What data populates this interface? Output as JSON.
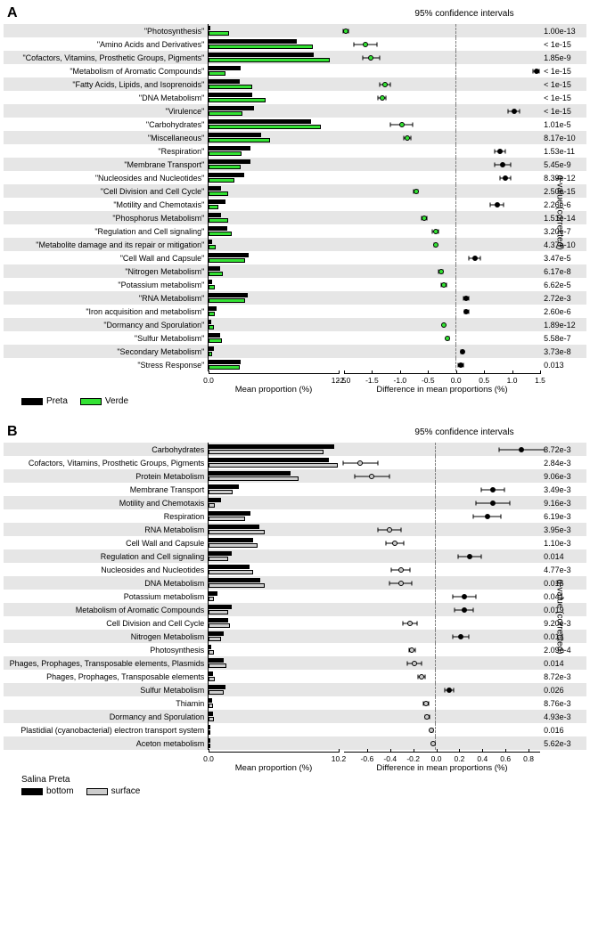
{
  "panelA": {
    "label": "A",
    "header": "95% confidence intervals",
    "bars_axis": {
      "min": 0,
      "max": 12.5,
      "ticks": [
        0.0,
        12.5
      ],
      "title": "Mean proportion (%)"
    },
    "diff_axis": {
      "min": -2.0,
      "max": 1.5,
      "ticks": [
        -2.0,
        -1.5,
        -1.0,
        -0.5,
        0.0,
        0.5,
        1.0,
        1.5
      ],
      "title": "Difference in mean proportions (%)"
    },
    "y_axis_right": "q-value (corrected)",
    "series": [
      {
        "name": "Preta",
        "color": "#000000"
      },
      {
        "name": "Verde",
        "color": "#33e233"
      }
    ],
    "rows": [
      {
        "cat": "\"Photosynthesis\"",
        "v": [
          0.05,
          2.0
        ],
        "d": -1.95,
        "ci": [
          0.05,
          0.05
        ],
        "col": "#33e233",
        "q": "1.00e-13"
      },
      {
        "cat": "\"Amino Acids and Derivatives\"",
        "v": [
          8.5,
          10.1
        ],
        "d": -1.6,
        "ci": [
          0.2,
          0.2
        ],
        "col": "#33e233",
        "q": "< 1e-15"
      },
      {
        "cat": "\"Cofactors, Vitamins, Prosthetic Groups, Pigments\"",
        "v": [
          10.2,
          11.7
        ],
        "d": -1.5,
        "ci": [
          0.15,
          0.15
        ],
        "col": "#33e233",
        "q": "1.85e-9"
      },
      {
        "cat": "\"Metabolism of Aromatic Compounds\"",
        "v": [
          3.1,
          1.6
        ],
        "d": 1.45,
        "ci": [
          0.06,
          0.06
        ],
        "col": "#000000",
        "q": "< 1e-15"
      },
      {
        "cat": "\"Fatty Acids, Lipids, and Isoprenoids\"",
        "v": [
          3.0,
          4.2
        ],
        "d": -1.25,
        "ci": [
          0.1,
          0.1
        ],
        "col": "#33e233",
        "q": "< 1e-15"
      },
      {
        "cat": "\"DNA Metabolism\"",
        "v": [
          4.2,
          5.5
        ],
        "d": -1.3,
        "ci": [
          0.07,
          0.07
        ],
        "col": "#33e233",
        "q": "< 1e-15"
      },
      {
        "cat": "\"Virulence\"",
        "v": [
          4.4,
          3.3
        ],
        "d": 1.05,
        "ci": [
          0.1,
          0.1
        ],
        "col": "#000000",
        "q": "< 1e-15"
      },
      {
        "cat": "\"Carbohydrates\"",
        "v": [
          9.9,
          10.9
        ],
        "d": -0.95,
        "ci": [
          0.2,
          0.2
        ],
        "col": "#33e233",
        "q": "1.01e-5"
      },
      {
        "cat": "\"Miscellaneous\"",
        "v": [
          5.1,
          5.9
        ],
        "d": -0.85,
        "ci": [
          0.06,
          0.06
        ],
        "col": "#33e233",
        "q": "8.17e-10"
      },
      {
        "cat": "\"Respiration\"",
        "v": [
          4.0,
          3.2
        ],
        "d": 0.8,
        "ci": [
          0.1,
          0.1
        ],
        "col": "#000000",
        "q": "1.53e-11"
      },
      {
        "cat": "\"Membrane Transport\"",
        "v": [
          4.0,
          3.1
        ],
        "d": 0.85,
        "ci": [
          0.15,
          0.15
        ],
        "col": "#000000",
        "q": "5.45e-9"
      },
      {
        "cat": "\"Nucleosides and Nucleotides\"",
        "v": [
          3.4,
          2.5
        ],
        "d": 0.9,
        "ci": [
          0.1,
          0.1
        ],
        "col": "#000000",
        "q": "8.39e-12"
      },
      {
        "cat": "\"Cell Division and Cell Cycle\"",
        "v": [
          1.2,
          1.9
        ],
        "d": -0.7,
        "ci": [
          0.04,
          0.04
        ],
        "col": "#33e233",
        "q": "2.50e-15"
      },
      {
        "cat": "\"Motility and Chemotaxis\"",
        "v": [
          1.65,
          0.9
        ],
        "d": 0.75,
        "ci": [
          0.12,
          0.12
        ],
        "col": "#000000",
        "q": "2.26e-6"
      },
      {
        "cat": "\"Phosphorus Metabolism\"",
        "v": [
          1.2,
          1.85
        ],
        "d": -0.55,
        "ci": [
          0.04,
          0.04
        ],
        "col": "#33e233",
        "q": "1.51e-14"
      },
      {
        "cat": "\"Regulation and Cell signaling\"",
        "v": [
          1.8,
          2.2
        ],
        "d": -0.35,
        "ci": [
          0.05,
          0.05
        ],
        "col": "#33e233",
        "q": "3.20e-7"
      },
      {
        "cat": "\"Metabolite damage and its repair or mitigation\"",
        "v": [
          0.3,
          0.65
        ],
        "d": -0.35,
        "ci": [
          0.03,
          0.03
        ],
        "col": "#33e233",
        "q": "4.37e-10"
      },
      {
        "cat": "\"Cell Wall and Capsule\"",
        "v": [
          3.9,
          3.5
        ],
        "d": 0.35,
        "ci": [
          0.1,
          0.1
        ],
        "col": "#000000",
        "q": "3.47e-5"
      },
      {
        "cat": "\"Nitrogen Metabolism\"",
        "v": [
          1.1,
          1.35
        ],
        "d": -0.25,
        "ci": [
          0.04,
          0.04
        ],
        "col": "#33e233",
        "q": "6.17e-8"
      },
      {
        "cat": "\"Potassium metabolism\"",
        "v": [
          0.35,
          0.55
        ],
        "d": -0.2,
        "ci": [
          0.04,
          0.04
        ],
        "col": "#33e233",
        "q": "6.62e-5"
      },
      {
        "cat": "\"RNA Metabolism\"",
        "v": [
          3.8,
          3.5
        ],
        "d": 0.2,
        "ci": [
          0.05,
          0.05
        ],
        "col": "#000000",
        "q": "2.72e-3"
      },
      {
        "cat": "\"Iron acquisition and metabolism\"",
        "v": [
          0.75,
          0.55
        ],
        "d": 0.2,
        "ci": [
          0.04,
          0.04
        ],
        "col": "#000000",
        "q": "2.60e-6"
      },
      {
        "cat": "\"Dormancy and Sporulation\"",
        "v": [
          0.25,
          0.45
        ],
        "d": -0.2,
        "ci": [
          0.02,
          0.02
        ],
        "col": "#33e233",
        "q": "1.89e-12"
      },
      {
        "cat": "\"Sulfur Metabolism\"",
        "v": [
          1.1,
          1.25
        ],
        "d": -0.13,
        "ci": [
          0.02,
          0.02
        ],
        "col": "#33e233",
        "q": "5.58e-7"
      },
      {
        "cat": "\"Secondary Metabolism\"",
        "v": [
          0.45,
          0.3
        ],
        "d": 0.13,
        "ci": [
          0.02,
          0.02
        ],
        "col": "#000000",
        "q": "3.73e-8"
      },
      {
        "cat": "\"Stress Response\"",
        "v": [
          3.1,
          3.0
        ],
        "d": 0.1,
        "ci": [
          0.05,
          0.05
        ],
        "col": "#000000",
        "q": "0.013"
      }
    ]
  },
  "panelB": {
    "label": "B",
    "header": "95% confidence intervals",
    "bars_axis": {
      "min": 0,
      "max": 10.2,
      "ticks": [
        0.0,
        10.2
      ],
      "title": "Mean proportion (%)"
    },
    "diff_axis": {
      "min": -0.8,
      "max": 0.9,
      "ticks": [
        -0.6,
        -0.4,
        -0.2,
        0.0,
        0.2,
        0.4,
        0.6,
        0.8
      ],
      "title": "Difference in mean proportions (%)"
    },
    "y_axis_right": "q-value (corrected)",
    "legend_title": "Salina Preta",
    "series": [
      {
        "name": "bottom",
        "color": "#000000"
      },
      {
        "name": "surface",
        "color": "#cccccc"
      }
    ],
    "rows": [
      {
        "cat": "Carbohydrates",
        "v": [
          9.9,
          9.1
        ],
        "d": 0.75,
        "ci": [
          0.2,
          0.2
        ],
        "col": "#000000",
        "q": "3.72e-3"
      },
      {
        "cat": "Cofactors, Vitamins, Prosthetic Groups, Pigments",
        "v": [
          9.5,
          10.2
        ],
        "d": -0.65,
        "ci": [
          0.15,
          0.15
        ],
        "col": "#cccccc",
        "q": "2.84e-3"
      },
      {
        "cat": "Protein Metabolism",
        "v": [
          6.5,
          7.1
        ],
        "d": -0.55,
        "ci": [
          0.15,
          0.15
        ],
        "col": "#cccccc",
        "q": "9.06e-3"
      },
      {
        "cat": "Membrane Transport",
        "v": [
          2.4,
          1.9
        ],
        "d": 0.5,
        "ci": [
          0.1,
          0.1
        ],
        "col": "#000000",
        "q": "3.49e-3"
      },
      {
        "cat": "Motility and Chemotaxis",
        "v": [
          1.0,
          0.5
        ],
        "d": 0.5,
        "ci": [
          0.15,
          0.15
        ],
        "col": "#000000",
        "q": "9.16e-3"
      },
      {
        "cat": "Respiration",
        "v": [
          3.3,
          2.9
        ],
        "d": 0.45,
        "ci": [
          0.12,
          0.12
        ],
        "col": "#000000",
        "q": "6.19e-3"
      },
      {
        "cat": "RNA Metabolism",
        "v": [
          4.0,
          4.4
        ],
        "d": -0.4,
        "ci": [
          0.1,
          0.1
        ],
        "col": "#cccccc",
        "q": "3.95e-3"
      },
      {
        "cat": "Cell Wall and Capsule",
        "v": [
          3.5,
          3.85
        ],
        "d": -0.35,
        "ci": [
          0.08,
          0.08
        ],
        "col": "#cccccc",
        "q": "1.10e-3"
      },
      {
        "cat": "Regulation and Cell signaling",
        "v": [
          1.8,
          1.5
        ],
        "d": 0.3,
        "ci": [
          0.1,
          0.1
        ],
        "col": "#000000",
        "q": "0.014"
      },
      {
        "cat": "Nucleosides and Nucleotides",
        "v": [
          3.2,
          3.5
        ],
        "d": -0.3,
        "ci": [
          0.08,
          0.08
        ],
        "col": "#cccccc",
        "q": "4.77e-3"
      },
      {
        "cat": "DNA Metabolism",
        "v": [
          4.1,
          4.4
        ],
        "d": -0.3,
        "ci": [
          0.1,
          0.1
        ],
        "col": "#cccccc",
        "q": "0.016"
      },
      {
        "cat": "Potassium metabolism",
        "v": [
          0.65,
          0.4
        ],
        "d": 0.25,
        "ci": [
          0.1,
          0.1
        ],
        "col": "#000000",
        "q": "0.041"
      },
      {
        "cat": "Metabolism of Aromatic Compounds",
        "v": [
          1.8,
          1.55
        ],
        "d": 0.25,
        "ci": [
          0.08,
          0.08
        ],
        "col": "#000000",
        "q": "0.019"
      },
      {
        "cat": "Cell Division and Cell Cycle",
        "v": [
          1.5,
          1.7
        ],
        "d": -0.22,
        "ci": [
          0.06,
          0.06
        ],
        "col": "#cccccc",
        "q": "9.20e-3"
      },
      {
        "cat": "Nitrogen Metabolism",
        "v": [
          1.2,
          0.98
        ],
        "d": 0.22,
        "ci": [
          0.07,
          0.07
        ],
        "col": "#000000",
        "q": "0.014"
      },
      {
        "cat": "Photosynthesis",
        "v": [
          0.2,
          0.4
        ],
        "d": -0.2,
        "ci": [
          0.03,
          0.03
        ],
        "col": "#cccccc",
        "q": "2.09e-4"
      },
      {
        "cat": "Phages, Prophages, Transposable elements, Plasmids",
        "v": [
          1.2,
          1.4
        ],
        "d": -0.18,
        "ci": [
          0.06,
          0.06
        ],
        "col": "#cccccc",
        "q": "0.014"
      },
      {
        "cat": "Phages, Prophages, Transposable elements",
        "v": [
          0.35,
          0.48
        ],
        "d": -0.12,
        "ci": [
          0.03,
          0.03
        ],
        "col": "#cccccc",
        "q": "8.72e-3"
      },
      {
        "cat": "Sulfur Metabolism",
        "v": [
          1.3,
          1.18
        ],
        "d": 0.12,
        "ci": [
          0.04,
          0.04
        ],
        "col": "#000000",
        "q": "0.026"
      },
      {
        "cat": "Thiamin",
        "v": [
          0.25,
          0.32
        ],
        "d": -0.08,
        "ci": [
          0.02,
          0.02
        ],
        "col": "#cccccc",
        "q": "8.76e-3"
      },
      {
        "cat": "Dormancy and Sporulation",
        "v": [
          0.35,
          0.4
        ],
        "d": -0.07,
        "ci": [
          0.02,
          0.02
        ],
        "col": "#cccccc",
        "q": "4.93e-3"
      },
      {
        "cat": "Plastidial (cyanobacterial) electron transport system",
        "v": [
          0.02,
          0.05
        ],
        "d": -0.03,
        "ci": [
          0.01,
          0.01
        ],
        "col": "#cccccc",
        "q": "0.016"
      },
      {
        "cat": "Aceton metabolism",
        "v": [
          0.02,
          0.03
        ],
        "d": -0.02,
        "ci": [
          0.005,
          0.005
        ],
        "col": "#cccccc",
        "q": "5.62e-3"
      }
    ]
  }
}
